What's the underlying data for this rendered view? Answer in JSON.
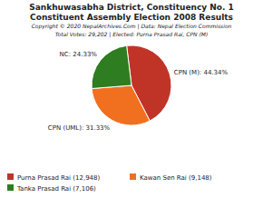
{
  "chart_data": {
    "type": "pie",
    "title": "Sankhuwasabha District, Constituency No. 1",
    "subtitle": "Constituent Assembly Election 2008 Results",
    "annotations": [
      "Copyright © 2020 NepalArchives.Com | Data: Nepal Election Commission",
      "Total Votes: 29,202 | Elected: Purna Prasad Rai, CPN (M)"
    ],
    "categories": [
      "Purna Prasad Rai (12,948)",
      "Kawan Sen Rai (9,148)",
      "Tanka Prasad Rai (7,106)"
    ],
    "values": [
      44.34,
      31.33,
      24.33
    ],
    "value_labels": [
      "CPN (M): 44.34%",
      "CPN (UML): 31.33%",
      "NC: 24.33%"
    ],
    "colors": [
      "#c03428",
      "#f07020",
      "#2e7d20"
    ],
    "data_labels": true,
    "legend": "lower left"
  }
}
